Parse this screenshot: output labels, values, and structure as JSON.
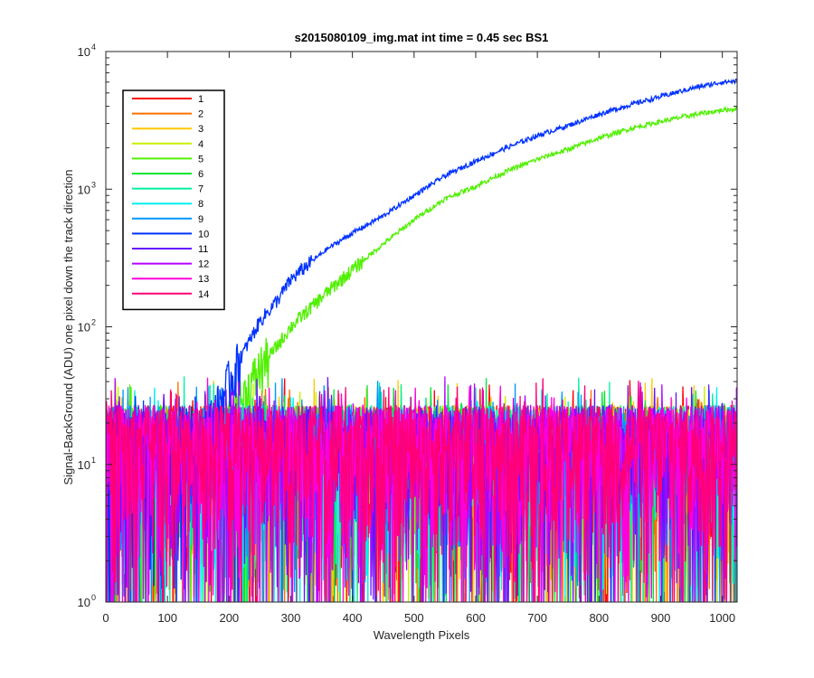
{
  "chart_data": {
    "type": "line",
    "title": "s2015080109_img.mat int time = 0.45 sec   BS1",
    "xlabel": "Wavelength Pixels",
    "ylabel": "Signal-BackGround (ADU) one pixel down the track direction",
    "x_scale": "linear",
    "y_scale": "log",
    "xlim": [
      0,
      1024
    ],
    "ylim": [
      1,
      10000
    ],
    "x_ticks": [
      "0",
      "100",
      "200",
      "300",
      "400",
      "500",
      "600",
      "700",
      "800",
      "900",
      "1000"
    ],
    "y_ticks": [
      {
        "base": "10",
        "exp": "0"
      },
      {
        "base": "10",
        "exp": "1"
      },
      {
        "base": "10",
        "exp": "2"
      },
      {
        "base": "10",
        "exp": "3"
      },
      {
        "base": "10",
        "exp": "4"
      }
    ],
    "grid": false,
    "legend_position": "top-left",
    "series": [
      {
        "name": "1",
        "color": "#ff0000",
        "kind": "noise"
      },
      {
        "name": "2",
        "color": "#ff7000",
        "kind": "noise"
      },
      {
        "name": "3",
        "color": "#ffc800",
        "kind": "noise"
      },
      {
        "name": "4",
        "color": "#c8f000",
        "kind": "noise"
      },
      {
        "name": "5",
        "color": "#50f000",
        "kind": "signal",
        "x": [
          150,
          180,
          200,
          230,
          250,
          280,
          300,
          330,
          360,
          400,
          450,
          500,
          550,
          600,
          650,
          700,
          750,
          800,
          850,
          900,
          950,
          1000,
          1024
        ],
        "y": [
          10,
          15,
          20,
          35,
          50,
          75,
          100,
          135,
          180,
          260,
          400,
          600,
          850,
          1050,
          1350,
          1650,
          1950,
          2350,
          2750,
          3100,
          3450,
          3750,
          3850
        ]
      },
      {
        "name": "6",
        "color": "#00e632",
        "kind": "noise"
      },
      {
        "name": "7",
        "color": "#00f0a0",
        "kind": "noise"
      },
      {
        "name": "8",
        "color": "#00f0f0",
        "kind": "noise"
      },
      {
        "name": "9",
        "color": "#0096ff",
        "kind": "noise"
      },
      {
        "name": "10",
        "color": "#0032ff",
        "kind": "signal",
        "x": [
          150,
          180,
          200,
          230,
          250,
          280,
          300,
          330,
          360,
          400,
          450,
          500,
          550,
          600,
          650,
          700,
          750,
          800,
          850,
          900,
          950,
          1000,
          1024
        ],
        "y": [
          15,
          25,
          40,
          75,
          110,
          160,
          220,
          290,
          370,
          480,
          640,
          900,
          1250,
          1600,
          2000,
          2450,
          2900,
          3500,
          4100,
          4700,
          5400,
          6000,
          6100
        ]
      },
      {
        "name": "11",
        "color": "#6414ff",
        "kind": "noise"
      },
      {
        "name": "12",
        "color": "#b400ff",
        "kind": "noise"
      },
      {
        "name": "13",
        "color": "#ff00dc",
        "kind": "noise"
      },
      {
        "name": "14",
        "color": "#ff0078",
        "kind": "noise"
      }
    ]
  }
}
